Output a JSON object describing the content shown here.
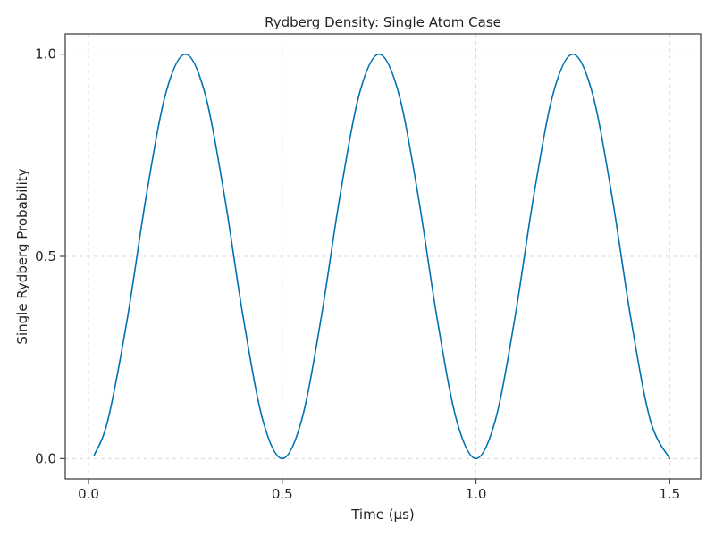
{
  "chart_data": {
    "type": "line",
    "title": "Rydberg Density: Single Atom Case",
    "xlabel": "Time (μs)",
    "ylabel": "Single Rydberg Probability",
    "xlim": [
      -0.06,
      1.58
    ],
    "ylim": [
      -0.05,
      1.05
    ],
    "xticks": [
      0.0,
      0.5,
      1.0,
      1.5
    ],
    "xtick_labels": [
      "0.0",
      "0.5",
      "1.0",
      "1.5"
    ],
    "yticks": [
      0.0,
      0.5,
      1.0
    ],
    "ytick_labels": [
      "0.0",
      "0.5",
      "1.0"
    ],
    "grid": true,
    "series": [
      {
        "color": "#0072b2",
        "x": [
          0.015,
          0.05,
          0.1,
          0.15,
          0.2,
          0.25,
          0.3,
          0.35,
          0.4,
          0.45,
          0.5,
          0.55,
          0.6,
          0.65,
          0.7,
          0.75,
          0.8,
          0.85,
          0.9,
          0.95,
          1.0,
          1.05,
          1.1,
          1.15,
          1.2,
          1.25,
          1.3,
          1.35,
          1.4,
          1.45,
          1.5
        ],
        "values": [
          0.009,
          0.095,
          0.345,
          0.655,
          0.905,
          1.0,
          0.905,
          0.655,
          0.345,
          0.095,
          0.0,
          0.095,
          0.345,
          0.655,
          0.905,
          1.0,
          0.905,
          0.655,
          0.345,
          0.095,
          0.0,
          0.095,
          0.345,
          0.655,
          0.905,
          1.0,
          0.905,
          0.655,
          0.345,
          0.095,
          0.0
        ]
      }
    ]
  }
}
